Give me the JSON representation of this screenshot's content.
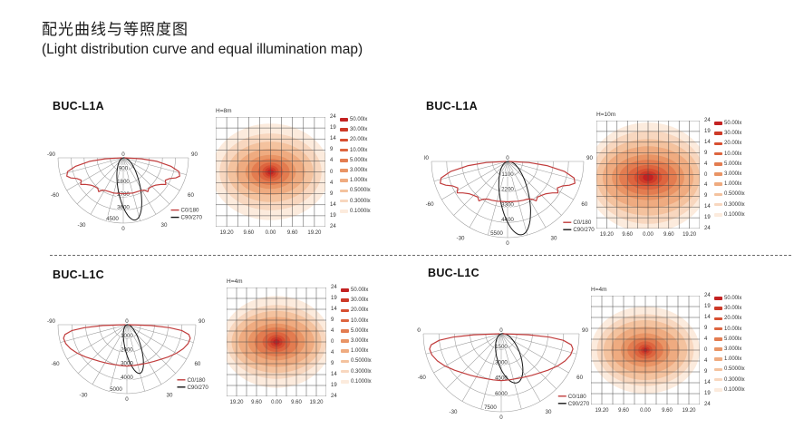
{
  "page": {
    "title_zh": "配光曲线与等照度图",
    "title_en": "(Light distribution curve and equal illumination map)"
  },
  "chart_data": {
    "shared": {
      "polar": {
        "type": "polar_line",
        "angle_ticks": [
          "-90",
          "-60",
          "-30",
          "0",
          "30",
          "60",
          "90"
        ],
        "angle_zero_top_label": "0",
        "series": [
          {
            "name": "C0/180",
            "color": "#c13c3c"
          },
          {
            "name": "C90/270",
            "color": "#161616"
          }
        ],
        "grid_spoke_step_deg": 15,
        "unit": "cd"
      },
      "map": {
        "type": "contour_heatmap",
        "x_ticks": [
          "19.20",
          "9.60",
          "0.00",
          "9.60",
          "19.20"
        ],
        "y_ticks": [
          "24",
          "19",
          "14",
          "9",
          "4",
          "0",
          "4",
          "9",
          "14",
          "19",
          "24"
        ],
        "grid": "10x10",
        "legend_position": "right",
        "levels": [
          "50.00lx",
          "30.00lx",
          "20.00lx",
          "10.00lx",
          "5.000lx",
          "3.000lx",
          "1.000lx",
          "0.5000lx",
          "0.3000lx",
          "0.1000lx"
        ],
        "level_colors": [
          "#c32222",
          "#cd3a28",
          "#d74f31",
          "#dd653f",
          "#e37c50",
          "#e99465",
          "#efab80",
          "#f4c29e",
          "#f8d7bf",
          "#fcebdd"
        ]
      }
    },
    "panels": [
      {
        "model": "BUC-L1A",
        "polar": {
          "radial_ticks": [
            "0",
            "900",
            "1800",
            "2700",
            "3600",
            "4500"
          ],
          "c0_180_points_theta_r": [
            [
              -90,
              0.02
            ],
            [
              -87,
              0.28
            ],
            [
              -84,
              0.52
            ],
            [
              -80,
              0.74
            ],
            [
              -76,
              0.88
            ],
            [
              -72,
              0.91
            ],
            [
              -69,
              0.86
            ],
            [
              -66,
              0.78
            ],
            [
              -62,
              0.73
            ],
            [
              -58,
              0.77
            ],
            [
              -55,
              0.71
            ],
            [
              -50,
              0.65
            ],
            [
              -45,
              0.62
            ],
            [
              -40,
              0.61
            ],
            [
              -36,
              0.64
            ],
            [
              -33,
              0.59
            ],
            [
              -28,
              0.57
            ],
            [
              -22,
              0.56
            ],
            [
              -15,
              0.56
            ],
            [
              -8,
              0.55
            ],
            [
              0,
              0.55
            ],
            [
              8,
              0.55
            ],
            [
              15,
              0.56
            ],
            [
              22,
              0.56
            ],
            [
              28,
              0.57
            ],
            [
              33,
              0.59
            ],
            [
              36,
              0.64
            ],
            [
              40,
              0.61
            ],
            [
              45,
              0.62
            ],
            [
              50,
              0.65
            ],
            [
              55,
              0.71
            ],
            [
              58,
              0.77
            ],
            [
              62,
              0.73
            ],
            [
              66,
              0.78
            ],
            [
              69,
              0.86
            ],
            [
              72,
              0.91
            ],
            [
              76,
              0.88
            ],
            [
              80,
              0.74
            ],
            [
              84,
              0.52
            ],
            [
              87,
              0.28
            ],
            [
              90,
              0.02
            ]
          ],
          "c90_270_ellipse": {
            "tilt_deg": 11,
            "length": 0.97,
            "half_width": 0.17
          }
        },
        "map": {
          "title": "H=8m",
          "contours_rx_ry": [
            [
              0.055,
              0.05
            ],
            [
              0.1,
              0.085
            ],
            [
              0.15,
              0.12
            ],
            [
              0.23,
              0.17
            ],
            [
              0.35,
              0.24
            ],
            [
              0.46,
              0.31
            ],
            [
              0.63,
              0.42
            ],
            [
              0.78,
              0.55
            ],
            [
              0.93,
              0.7
            ],
            [
              1.08,
              0.88
            ]
          ]
        }
      },
      {
        "model": "BUC-L1A",
        "polar": {
          "radial_ticks": [
            "0",
            "1100",
            "2200",
            "3300",
            "4400",
            "5500"
          ],
          "c0_180_points_theta_r": [
            [
              -90,
              0.02
            ],
            [
              -87,
              0.28
            ],
            [
              -84,
              0.52
            ],
            [
              -80,
              0.76
            ],
            [
              -76,
              0.9
            ],
            [
              -72,
              0.93
            ],
            [
              -69,
              0.87
            ],
            [
              -66,
              0.79
            ],
            [
              -62,
              0.74
            ],
            [
              -58,
              0.78
            ],
            [
              -55,
              0.72
            ],
            [
              -50,
              0.66
            ],
            [
              -45,
              0.63
            ],
            [
              -40,
              0.61
            ],
            [
              -36,
              0.64
            ],
            [
              -33,
              0.59
            ],
            [
              -28,
              0.56
            ],
            [
              -22,
              0.55
            ],
            [
              -15,
              0.54
            ],
            [
              -8,
              0.53
            ],
            [
              0,
              0.53
            ],
            [
              8,
              0.53
            ],
            [
              15,
              0.54
            ],
            [
              22,
              0.55
            ],
            [
              28,
              0.56
            ],
            [
              33,
              0.59
            ],
            [
              36,
              0.64
            ],
            [
              40,
              0.61
            ],
            [
              45,
              0.63
            ],
            [
              50,
              0.66
            ],
            [
              55,
              0.72
            ],
            [
              58,
              0.78
            ],
            [
              62,
              0.74
            ],
            [
              66,
              0.79
            ],
            [
              69,
              0.87
            ],
            [
              72,
              0.93
            ],
            [
              76,
              0.9
            ],
            [
              80,
              0.76
            ],
            [
              84,
              0.52
            ],
            [
              87,
              0.28
            ],
            [
              90,
              0.02
            ]
          ],
          "c90_270_ellipse": {
            "tilt_deg": 11,
            "length": 0.98,
            "half_width": 0.19
          }
        },
        "map": {
          "title": "H=10m",
          "contours_rx_ry": [
            [
              0.1,
              0.075
            ],
            [
              0.18,
              0.12
            ],
            [
              0.27,
              0.17
            ],
            [
              0.4,
              0.24
            ],
            [
              0.56,
              0.34
            ],
            [
              0.7,
              0.44
            ],
            [
              0.88,
              0.6
            ],
            [
              1.0,
              0.74
            ],
            [
              1.1,
              0.9
            ],
            [
              1.2,
              1.06
            ]
          ]
        }
      },
      {
        "model": "BUC-L1C",
        "polar": {
          "radial_ticks": [
            "0",
            "1000",
            "2000",
            "3000",
            "4000",
            "5000"
          ],
          "c0_180_points_theta_r": [
            [
              -90,
              0.02
            ],
            [
              -88,
              0.35
            ],
            [
              -86,
              0.62
            ],
            [
              -84,
              0.8
            ],
            [
              -81,
              0.91
            ],
            [
              -78,
              0.94
            ],
            [
              -73,
              0.93
            ],
            [
              -67,
              0.89
            ],
            [
              -60,
              0.83
            ],
            [
              -52,
              0.76
            ],
            [
              -44,
              0.7
            ],
            [
              -36,
              0.66
            ],
            [
              -28,
              0.63
            ],
            [
              -20,
              0.61
            ],
            [
              -10,
              0.6
            ],
            [
              0,
              0.6
            ],
            [
              10,
              0.6
            ],
            [
              20,
              0.61
            ],
            [
              28,
              0.63
            ],
            [
              36,
              0.66
            ],
            [
              44,
              0.7
            ],
            [
              52,
              0.76
            ],
            [
              60,
              0.83
            ],
            [
              67,
              0.89
            ],
            [
              73,
              0.93
            ],
            [
              78,
              0.94
            ],
            [
              81,
              0.91
            ],
            [
              84,
              0.8
            ],
            [
              86,
              0.62
            ],
            [
              88,
              0.35
            ],
            [
              90,
              0.02
            ]
          ],
          "c90_270_ellipse": {
            "tilt_deg": 15,
            "length": 0.73,
            "half_width": 0.115
          }
        },
        "map": {
          "title": "H=4m",
          "contours_rx_ry": [
            [
              0.065,
              0.055
            ],
            [
              0.12,
              0.095
            ],
            [
              0.18,
              0.14
            ],
            [
              0.28,
              0.2
            ],
            [
              0.44,
              0.29
            ],
            [
              0.57,
              0.37
            ],
            [
              0.76,
              0.5
            ],
            [
              0.9,
              0.62
            ],
            [
              1.0,
              0.74
            ],
            [
              1.1,
              0.92
            ]
          ]
        }
      },
      {
        "model": "BUC-L1C",
        "polar": {
          "radial_ticks": [
            "0",
            "1500",
            "3000",
            "4500",
            "6000",
            "7500"
          ],
          "c0_180_points_theta_r": [
            [
              -90,
              0.02
            ],
            [
              -88,
              0.35
            ],
            [
              -86,
              0.62
            ],
            [
              -84,
              0.8
            ],
            [
              -81,
              0.91
            ],
            [
              -78,
              0.94
            ],
            [
              -73,
              0.93
            ],
            [
              -67,
              0.89
            ],
            [
              -60,
              0.83
            ],
            [
              -52,
              0.76
            ],
            [
              -44,
              0.7
            ],
            [
              -36,
              0.66
            ],
            [
              -28,
              0.63
            ],
            [
              -20,
              0.61
            ],
            [
              -10,
              0.6
            ],
            [
              0,
              0.6
            ],
            [
              10,
              0.6
            ],
            [
              20,
              0.61
            ],
            [
              28,
              0.63
            ],
            [
              36,
              0.66
            ],
            [
              44,
              0.7
            ],
            [
              52,
              0.76
            ],
            [
              60,
              0.83
            ],
            [
              67,
              0.89
            ],
            [
              73,
              0.93
            ],
            [
              78,
              0.94
            ],
            [
              81,
              0.91
            ],
            [
              84,
              0.8
            ],
            [
              86,
              0.62
            ],
            [
              88,
              0.35
            ],
            [
              90,
              0.02
            ]
          ],
          "c90_270_ellipse": {
            "tilt_deg": 18,
            "length": 0.66,
            "half_width": 0.15
          }
        },
        "map": {
          "title": "H=4m",
          "contours_rx_ry": [
            [
              0.04,
              0.035
            ],
            [
              0.08,
              0.065
            ],
            [
              0.13,
              0.105
            ],
            [
              0.21,
              0.16
            ],
            [
              0.33,
              0.23
            ],
            [
              0.45,
              0.31
            ],
            [
              0.63,
              0.43
            ],
            [
              0.77,
              0.55
            ],
            [
              0.89,
              0.66
            ],
            [
              1.0,
              0.8
            ]
          ]
        }
      }
    ]
  }
}
